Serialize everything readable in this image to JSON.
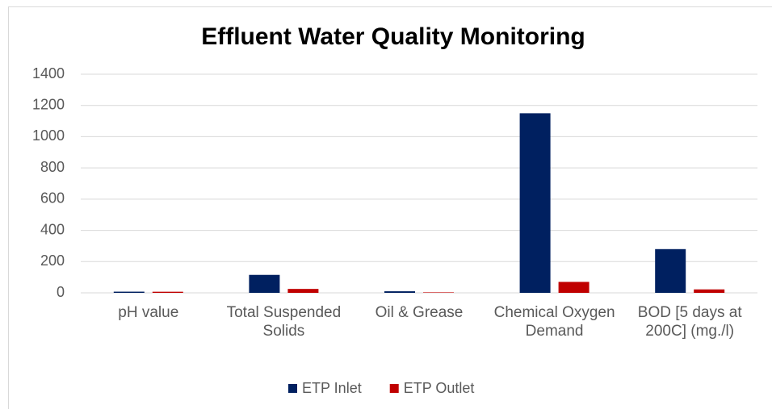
{
  "chart_data": {
    "type": "bar",
    "title": "Effluent Water Quality Monitoring",
    "categories": [
      "pH value",
      "Total Suspended Solids",
      "Oil & Grease",
      "Chemical Oxygen Demand",
      "BOD [5 days at 200C] (mg./l)"
    ],
    "series": [
      {
        "name": "ETP Inlet",
        "color": "#002060",
        "values": [
          7.5,
          115,
          10,
          1150,
          280
        ]
      },
      {
        "name": "ETP Outlet",
        "color": "#c00000",
        "values": [
          7,
          25,
          3,
          70,
          22
        ]
      }
    ],
    "ylim": [
      0,
      1400
    ],
    "yticks": [
      0,
      200,
      400,
      600,
      800,
      1000,
      1200,
      1400
    ],
    "grid": true,
    "legend": "bottom"
  }
}
